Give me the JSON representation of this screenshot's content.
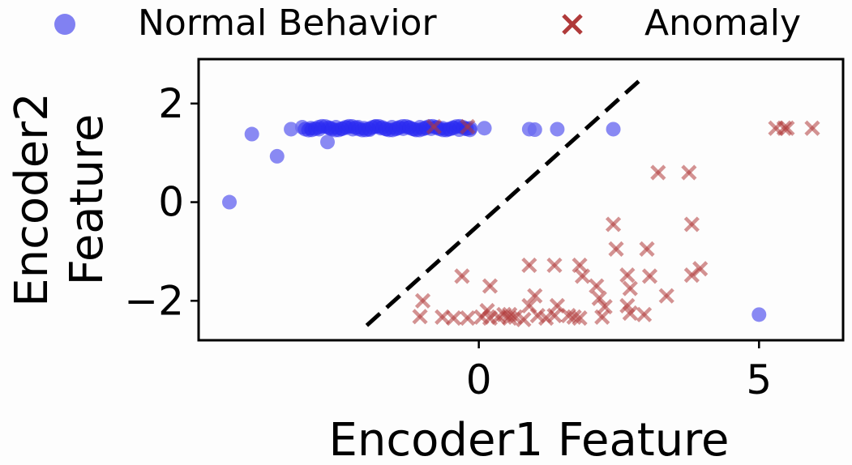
{
  "chart_data": {
    "type": "scatter",
    "xlabel": "Encoder1 Feature",
    "ylabel_lines": [
      "Encoder2",
      "Feature"
    ],
    "xlim": [
      -5.0,
      6.5
    ],
    "ylim": [
      -2.8,
      2.9
    ],
    "xticks": [
      0,
      5
    ],
    "yticks": [
      2,
      0,
      -2
    ],
    "ytick_labels": [
      "2",
      "0",
      "−2"
    ],
    "legend_position": "top",
    "grid": false,
    "series": [
      {
        "name": "Normal Behavior",
        "marker": "circle",
        "color": "#6b6bf0",
        "points": [
          [
            -4.45,
            0.0
          ],
          [
            -4.05,
            1.38
          ],
          [
            -3.6,
            0.93
          ],
          [
            -3.35,
            1.48
          ],
          [
            -3.15,
            1.52
          ],
          [
            -3.0,
            1.5
          ],
          [
            -2.85,
            1.48
          ],
          [
            -2.7,
            1.22
          ],
          [
            -2.65,
            1.5
          ],
          [
            -2.55,
            1.52
          ],
          [
            -2.45,
            1.49
          ],
          [
            -2.35,
            1.51
          ],
          [
            -2.25,
            1.48
          ],
          [
            -2.15,
            1.52
          ],
          [
            -2.05,
            1.5
          ],
          [
            -1.95,
            1.47
          ],
          [
            -1.85,
            1.53
          ],
          [
            -1.75,
            1.5
          ],
          [
            -1.65,
            1.48
          ],
          [
            -1.55,
            1.52
          ],
          [
            -1.45,
            1.5
          ],
          [
            -1.35,
            1.49
          ],
          [
            -1.25,
            1.51
          ],
          [
            -1.15,
            1.48
          ],
          [
            -1.05,
            1.52
          ],
          [
            -0.95,
            1.5
          ],
          [
            -0.85,
            1.49
          ],
          [
            -0.75,
            1.51
          ],
          [
            -0.65,
            1.5
          ],
          [
            -0.55,
            1.48
          ],
          [
            -0.45,
            1.5
          ],
          [
            -0.35,
            1.47
          ],
          [
            -0.25,
            1.49
          ],
          [
            -0.15,
            1.5
          ],
          [
            0.1,
            1.5
          ],
          [
            0.9,
            1.48
          ],
          [
            1.0,
            1.47
          ],
          [
            1.4,
            1.48
          ],
          [
            2.4,
            1.48
          ],
          [
            5.0,
            -2.28
          ]
        ]
      },
      {
        "name": "Anomaly",
        "marker": "x",
        "color": "#b03a3a",
        "points": [
          [
            -0.8,
            1.53
          ],
          [
            -0.2,
            1.53
          ],
          [
            5.3,
            1.5
          ],
          [
            5.45,
            1.5
          ],
          [
            5.5,
            1.5
          ],
          [
            5.95,
            1.5
          ],
          [
            3.2,
            0.6
          ],
          [
            3.75,
            0.6
          ],
          [
            2.4,
            -0.45
          ],
          [
            3.8,
            -0.45
          ],
          [
            2.45,
            -0.95
          ],
          [
            3.0,
            -0.95
          ],
          [
            0.9,
            -1.28
          ],
          [
            1.35,
            -1.28
          ],
          [
            1.8,
            -1.28
          ],
          [
            3.95,
            -1.35
          ],
          [
            3.8,
            -1.48
          ],
          [
            -0.3,
            -1.5
          ],
          [
            1.85,
            -1.5
          ],
          [
            2.65,
            -1.48
          ],
          [
            3.05,
            -1.5
          ],
          [
            0.2,
            -1.7
          ],
          [
            2.1,
            -1.7
          ],
          [
            2.7,
            -1.75
          ],
          [
            1.0,
            -1.9
          ],
          [
            3.35,
            -1.9
          ],
          [
            2.15,
            -1.95
          ],
          [
            -1.0,
            -2.0
          ],
          [
            0.9,
            -2.1
          ],
          [
            1.4,
            -2.1
          ],
          [
            2.25,
            -2.12
          ],
          [
            2.65,
            -2.1
          ],
          [
            0.15,
            -2.2
          ],
          [
            0.45,
            -2.28
          ],
          [
            0.55,
            -2.28
          ],
          [
            1.05,
            -2.3
          ],
          [
            1.6,
            -2.3
          ],
          [
            2.7,
            -2.25
          ],
          [
            2.95,
            -2.28
          ],
          [
            -1.05,
            -2.32
          ],
          [
            -0.65,
            -2.33
          ],
          [
            -0.45,
            -2.35
          ],
          [
            -0.2,
            -2.35
          ],
          [
            0.05,
            -2.33
          ],
          [
            0.35,
            -2.33
          ],
          [
            0.55,
            -2.35
          ],
          [
            0.65,
            -2.33
          ],
          [
            1.2,
            -2.35
          ],
          [
            1.35,
            -2.3
          ],
          [
            1.7,
            -2.33
          ],
          [
            1.8,
            -2.35
          ],
          [
            2.2,
            -2.33
          ],
          [
            0.2,
            -2.35
          ],
          [
            0.8,
            -2.38
          ]
        ]
      }
    ],
    "decision_line": {
      "style": "dashed",
      "color": "#000000",
      "from": [
        -2.0,
        -2.5
      ],
      "to": [
        2.95,
        2.55
      ]
    }
  }
}
